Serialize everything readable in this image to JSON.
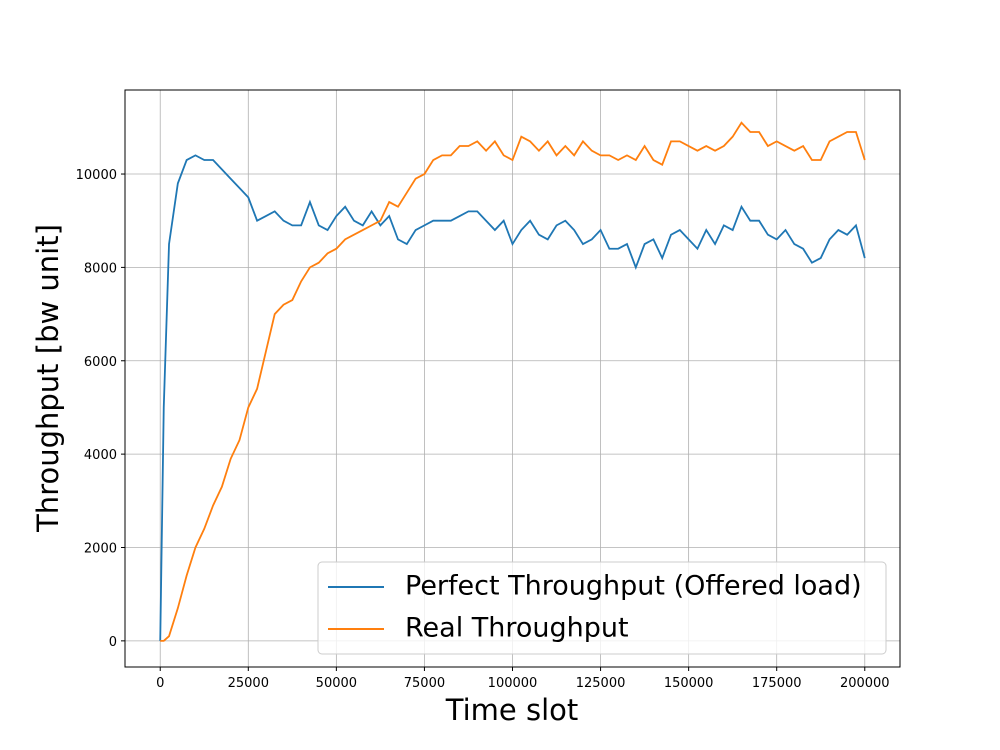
{
  "chart_data": {
    "type": "line",
    "xlabel": "Time slot",
    "ylabel": "Throughput [bw unit]",
    "x": [
      0,
      1000,
      2500,
      5000,
      7500,
      10000,
      12500,
      15000,
      17500,
      20000,
      22500,
      25000,
      27500,
      30000,
      32500,
      35000,
      37500,
      40000,
      42500,
      45000,
      47500,
      50000,
      52500,
      55000,
      57500,
      60000,
      62500,
      65000,
      67500,
      70000,
      72500,
      75000,
      77500,
      80000,
      82500,
      85000,
      87500,
      90000,
      92500,
      95000,
      97500,
      100000,
      102500,
      105000,
      107500,
      110000,
      112500,
      115000,
      117500,
      120000,
      122500,
      125000,
      127500,
      130000,
      132500,
      135000,
      137500,
      140000,
      142500,
      145000,
      147500,
      150000,
      152500,
      155000,
      157500,
      160000,
      162500,
      165000,
      167500,
      170000,
      172500,
      175000,
      177500,
      180000,
      182500,
      185000,
      187500,
      190000,
      192500,
      195000,
      197500,
      200000
    ],
    "series": [
      {
        "name": "Perfect Throughput (Offered load)",
        "color": "#1f77b4",
        "values": [
          0,
          5000,
          8500,
          9800,
          10300,
          10400,
          10300,
          10300,
          10100,
          9900,
          9700,
          9500,
          9000,
          9100,
          9200,
          9000,
          8900,
          8900,
          9400,
          8900,
          8800,
          9100,
          9300,
          9000,
          8900,
          9200,
          8900,
          9100,
          8600,
          8500,
          8800,
          8900,
          9000,
          9000,
          9000,
          9100,
          9200,
          9200,
          9000,
          8800,
          9000,
          8500,
          8800,
          9000,
          8700,
          8600,
          8900,
          9000,
          8800,
          8500,
          8600,
          8800,
          8400,
          8400,
          8500,
          8000,
          8500,
          8600,
          8200,
          8700,
          8800,
          8600,
          8400,
          8800,
          8500,
          8900,
          8800,
          9300,
          9000,
          9000,
          8700,
          8600,
          8800,
          8500,
          8400,
          8100,
          8200,
          8600,
          8800,
          8700,
          8900,
          8200
        ]
      },
      {
        "name": "Real Throughput",
        "color": "#ff7f0e",
        "values": [
          0,
          0,
          100,
          700,
          1400,
          2000,
          2400,
          2900,
          3300,
          3900,
          4300,
          5000,
          5400,
          6200,
          7000,
          7200,
          7300,
          7700,
          8000,
          8100,
          8300,
          8400,
          8600,
          8700,
          8800,
          8900,
          9000,
          9400,
          9300,
          9600,
          9900,
          10000,
          10300,
          10400,
          10400,
          10600,
          10600,
          10700,
          10500,
          10700,
          10400,
          10300,
          10800,
          10700,
          10500,
          10700,
          10400,
          10600,
          10400,
          10700,
          10500,
          10400,
          10400,
          10300,
          10400,
          10300,
          10600,
          10300,
          10200,
          10700,
          10700,
          10600,
          10500,
          10600,
          10500,
          10600,
          10800,
          11100,
          10900,
          10900,
          10600,
          10700,
          10600,
          10500,
          10600,
          10300,
          10300,
          10700,
          10800,
          10900,
          10900,
          10300
        ]
      }
    ],
    "xlim": [
      -10000,
      210000
    ],
    "ylim": [
      -560,
      11800
    ],
    "xticks": [
      0,
      25000,
      50000,
      75000,
      100000,
      125000,
      150000,
      175000,
      200000
    ],
    "yticks": [
      0,
      2000,
      4000,
      6000,
      8000,
      10000
    ],
    "grid": true,
    "legend": "lower right"
  }
}
